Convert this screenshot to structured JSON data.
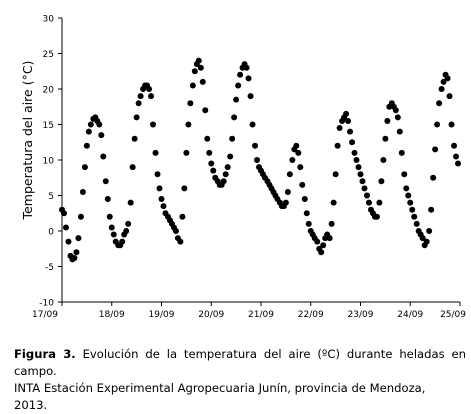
{
  "caption": {
    "figure_label": "Figura 3.",
    "line1": " Evolución de la temperatura del aire (ºC) durante heladas en campo.",
    "line2": "INTA Estación Experimental Agropecuaria Junín, provincia de Mendoza,",
    "line3": "2013."
  },
  "chart_data": {
    "type": "scatter",
    "title": "",
    "xlabel": "",
    "ylabel": "Temperatura del aire (°C)",
    "ylim": [
      -10,
      30
    ],
    "yticks": [
      -10,
      -5,
      0,
      5,
      10,
      15,
      20,
      25,
      30
    ],
    "ytick_labels": [
      "-10",
      "-5",
      "0",
      "5",
      "10",
      "15",
      "20",
      "25",
      "30"
    ],
    "xlim": [
      0,
      8
    ],
    "xticks": [
      0,
      1,
      2,
      3,
      4,
      5,
      6,
      7,
      8
    ],
    "xtick_labels": [
      "17/09",
      "18/09",
      "19/09",
      "20/09",
      "21/09",
      "22/09",
      "23/09",
      "24/09",
      "25/09"
    ],
    "grid": false,
    "legend": "none",
    "marker_color": "#000000",
    "series": [
      {
        "x_unit": "days since 17/09 00:00",
        "x": [
          0.0,
          0.04,
          0.08,
          0.13,
          0.17,
          0.21,
          0.25,
          0.29,
          0.33,
          0.38,
          0.42,
          0.46,
          0.5,
          0.54,
          0.58,
          0.63,
          0.67,
          0.71,
          0.75,
          0.79,
          0.83,
          0.88,
          0.92,
          0.96,
          1.0,
          1.04,
          1.08,
          1.13,
          1.17,
          1.21,
          1.25,
          1.29,
          1.33,
          1.38,
          1.42,
          1.46,
          1.5,
          1.54,
          1.58,
          1.63,
          1.67,
          1.71,
          1.75,
          1.79,
          1.83,
          1.88,
          1.92,
          1.96,
          2.0,
          2.04,
          2.08,
          2.13,
          2.17,
          2.21,
          2.25,
          2.29,
          2.33,
          2.38,
          2.42,
          2.46,
          2.5,
          2.54,
          2.58,
          2.63,
          2.67,
          2.71,
          2.75,
          2.79,
          2.83,
          2.88,
          2.92,
          2.96,
          3.0,
          3.04,
          3.08,
          3.13,
          3.17,
          3.21,
          3.25,
          3.29,
          3.33,
          3.38,
          3.42,
          3.46,
          3.5,
          3.54,
          3.58,
          3.63,
          3.67,
          3.71,
          3.75,
          3.79,
          3.83,
          3.88,
          3.92,
          3.96,
          4.0,
          4.04,
          4.08,
          4.13,
          4.17,
          4.21,
          4.25,
          4.29,
          4.33,
          4.38,
          4.42,
          4.46,
          4.5,
          4.54,
          4.58,
          4.63,
          4.67,
          4.71,
          4.75,
          4.79,
          4.83,
          4.88,
          4.92,
          4.96,
          5.0,
          5.04,
          5.08,
          5.13,
          5.17,
          5.21,
          5.25,
          5.29,
          5.33,
          5.38,
          5.42,
          5.46,
          5.5,
          5.54,
          5.58,
          5.63,
          5.67,
          5.71,
          5.75,
          5.79,
          5.83,
          5.88,
          5.92,
          5.96,
          6.0,
          6.04,
          6.08,
          6.13,
          6.17,
          6.21,
          6.25,
          6.29,
          6.33,
          6.38,
          6.42,
          6.46,
          6.5,
          6.54,
          6.58,
          6.63,
          6.67,
          6.71,
          6.75,
          6.79,
          6.83,
          6.88,
          6.92,
          6.96,
          7.0,
          7.04,
          7.08,
          7.13,
          7.17,
          7.21,
          7.25,
          7.29,
          7.33,
          7.38,
          7.42,
          7.46,
          7.5,
          7.54,
          7.58,
          7.63,
          7.67,
          7.71,
          7.75,
          7.79,
          7.83,
          7.88,
          7.92,
          7.96
        ],
        "y": [
          3.0,
          2.5,
          0.5,
          -1.5,
          -3.5,
          -4.0,
          -3.8,
          -3.0,
          -1.0,
          2.0,
          5.5,
          9.0,
          12.0,
          14.0,
          15.0,
          15.8,
          16.0,
          15.5,
          15.0,
          13.5,
          10.5,
          7.0,
          4.5,
          2.0,
          0.5,
          -0.5,
          -1.5,
          -2.0,
          -2.0,
          -1.5,
          -0.5,
          0.0,
          1.0,
          4.0,
          9.0,
          13.0,
          16.0,
          18.0,
          19.0,
          20.0,
          20.5,
          20.5,
          20.0,
          19.0,
          15.0,
          11.0,
          8.0,
          6.0,
          4.5,
          3.5,
          2.5,
          2.0,
          1.5,
          1.0,
          0.5,
          0.0,
          -1.0,
          -1.5,
          2.0,
          6.0,
          11.0,
          15.0,
          18.0,
          20.5,
          22.5,
          23.5,
          24.0,
          23.0,
          21.0,
          17.0,
          13.0,
          11.0,
          9.5,
          8.5,
          7.5,
          7.0,
          6.5,
          6.5,
          7.0,
          8.0,
          9.0,
          10.5,
          13.0,
          16.0,
          18.5,
          20.5,
          22.0,
          23.0,
          23.5,
          23.0,
          21.5,
          19.0,
          15.0,
          12.0,
          10.0,
          9.0,
          8.5,
          8.0,
          7.5,
          7.0,
          6.5,
          6.0,
          5.5,
          5.0,
          4.5,
          4.0,
          3.5,
          3.5,
          4.0,
          5.5,
          8.0,
          10.0,
          11.5,
          12.0,
          11.0,
          9.0,
          6.5,
          4.5,
          2.5,
          1.0,
          0.0,
          -0.5,
          -1.0,
          -1.5,
          -2.5,
          -3.0,
          -2.0,
          -1.0,
          -0.5,
          -1.0,
          1.0,
          4.0,
          8.0,
          12.0,
          14.5,
          15.5,
          16.0,
          16.5,
          15.5,
          14.0,
          12.5,
          11.0,
          10.0,
          9.0,
          8.0,
          7.0,
          6.0,
          5.0,
          4.0,
          3.0,
          2.5,
          2.0,
          2.0,
          4.0,
          7.0,
          10.0,
          13.0,
          15.5,
          17.5,
          18.0,
          17.5,
          17.0,
          16.0,
          14.0,
          11.0,
          8.0,
          6.0,
          5.0,
          4.0,
          3.0,
          2.0,
          1.0,
          0.0,
          -0.5,
          -1.0,
          -2.0,
          -1.5,
          0.0,
          3.0,
          7.5,
          11.5,
          15.0,
          18.0,
          20.0,
          21.0,
          22.0,
          21.5,
          19.0,
          15.0,
          12.0,
          10.5,
          9.5
        ]
      }
    ]
  }
}
